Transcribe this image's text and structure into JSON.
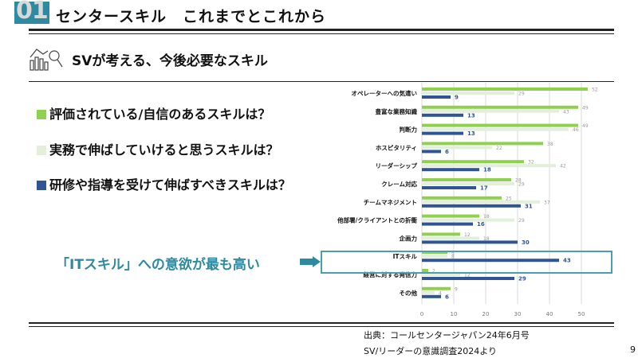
{
  "header": {
    "number": "01",
    "title": "センタースキル　これまでとこれから"
  },
  "subtitle": "SVが考える、今後必要なスキル",
  "questions": [
    {
      "text": "評価されている/自信のあるスキルは？",
      "color": "#8fd14f"
    },
    {
      "text": "実務で伸ばしていけると思うスキルは？",
      "color": "#e2f0d9"
    },
    {
      "text": "研修や指導を受けて伸ばすべきスキルは？",
      "color": "#2f5597"
    }
  ],
  "callout": "「ITスキル」への意欲が最も高い",
  "source": [
    "出典：コールセンタージャパン24年6月号",
    "SV/リーダーの意識調査2024より"
  ],
  "page_number": "9",
  "chart_data": {
    "type": "bar",
    "orientation": "horizontal",
    "categories": [
      "オペレーターへの気遣い",
      "豊富な業務知識",
      "判断力",
      "ホスピタリティ",
      "リーダーシップ",
      "クレーム対応",
      "チームマネジメント",
      "他部署/クライアントとの折衝",
      "企画力",
      "ITスキル",
      "経営に対する発信力",
      "その他"
    ],
    "series": [
      {
        "name": "評価されている/自信のあるスキル",
        "color": "#8fd14f",
        "values": [
          52,
          49,
          49,
          38,
          32,
          28,
          25,
          18,
          12,
          8,
          2,
          9
        ]
      },
      {
        "name": "実務で伸ばしていけると思うスキル",
        "color": "#e2f0d9",
        "values": [
          29,
          43,
          46,
          22,
          42,
          29,
          37,
          29,
          18,
          8,
          12,
          4
        ]
      },
      {
        "name": "研修や指導を受けて伸ばすべきスキル",
        "color": "#2f5597",
        "values": [
          9,
          13,
          13,
          6,
          18,
          17,
          31,
          16,
          30,
          43,
          29,
          6
        ]
      }
    ],
    "xlim": [
      0,
      50
    ],
    "xticks": [
      "0",
      "10",
      "20",
      "30",
      "40",
      "50"
    ],
    "grid": true,
    "highlight": "ITスキル"
  }
}
